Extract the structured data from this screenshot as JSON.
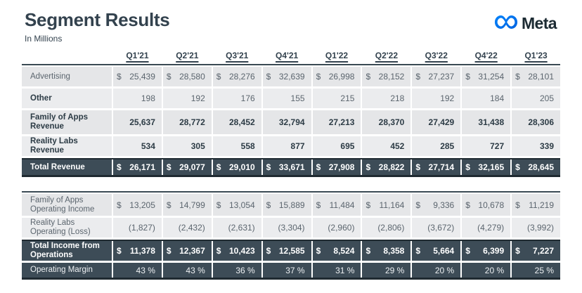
{
  "currency_symbol": "$",
  "header": {
    "title": "Segment Results",
    "subtitle": "In Millions",
    "logo_text": "Meta"
  },
  "brand_colors": {
    "logo_blue_start": "#0082fb",
    "logo_blue_end": "#0064e0",
    "dark_slate": "#3d4c57"
  },
  "columns": [
    "Q1'21",
    "Q2'21",
    "Q3'21",
    "Q4'21",
    "Q1'22",
    "Q2'22",
    "Q3'22",
    "Q4'22",
    "Q1'23"
  ],
  "revenue_table": {
    "rows": [
      {
        "label": "Advertising",
        "dollar": true,
        "variant": "muted",
        "shade": "a",
        "height": "",
        "values": [
          "25,439",
          "28,580",
          "28,276",
          "32,639",
          "26,998",
          "28,152",
          "27,237",
          "31,254",
          "28,101"
        ]
      },
      {
        "label": "Other",
        "dollar": false,
        "variant": "label-emph",
        "shade": "b",
        "height": "",
        "values": [
          "198",
          "192",
          "176",
          "155",
          "215",
          "218",
          "192",
          "184",
          "205"
        ]
      },
      {
        "label": "Family of Apps Revenue",
        "dollar": false,
        "variant": "subtotal",
        "shade": "a",
        "height": "tall",
        "values": [
          "25,637",
          "28,772",
          "28,452",
          "32,794",
          "27,213",
          "28,370",
          "27,429",
          "31,438",
          "28,306"
        ]
      },
      {
        "label": "Reality Labs Revenue",
        "dollar": false,
        "variant": "subtotal",
        "shade": "b",
        "height": "",
        "values": [
          "534",
          "305",
          "558",
          "877",
          "695",
          "452",
          "285",
          "727",
          "339"
        ]
      },
      {
        "label": "Total Revenue",
        "dollar": true,
        "variant": "total",
        "shade": "",
        "height": "h27",
        "values": [
          "26,171",
          "29,077",
          "29,010",
          "33,671",
          "27,908",
          "28,822",
          "27,714",
          "32,165",
          "28,645"
        ]
      }
    ]
  },
  "income_table": {
    "rows": [
      {
        "label": "Family of Apps Operating Income",
        "dollar": true,
        "variant": "muted",
        "shade": "a",
        "height": "h31",
        "values": [
          "13,205",
          "14,799",
          "13,054",
          "15,889",
          "11,484",
          "11,164",
          "9,336",
          "10,678",
          "11,219"
        ]
      },
      {
        "label": "Reality Labs Operating (Loss)",
        "dollar": false,
        "variant": "muted",
        "shade": "b",
        "height": "",
        "values": [
          "(1,827)",
          "(2,432)",
          "(2,631)",
          "(3,304)",
          "(2,960)",
          "(2,806)",
          "(3,672)",
          "(4,279)",
          "(3,992)"
        ]
      },
      {
        "label": "Total Income from Operations",
        "dollar": true,
        "variant": "total",
        "shade": "",
        "height": "h30",
        "values": [
          "11,378",
          "12,367",
          "10,423",
          "12,585",
          "8,524",
          "8,358",
          "5,664",
          "6,399",
          "7,227"
        ]
      },
      {
        "label": "Operating Margin",
        "dollar": false,
        "variant": "total-margin",
        "shade": "",
        "height": "h24",
        "values": [
          "43 %",
          "43 %",
          "36 %",
          "37 %",
          "31 %",
          "29 %",
          "20 %",
          "20 %",
          "25 %"
        ]
      }
    ]
  }
}
